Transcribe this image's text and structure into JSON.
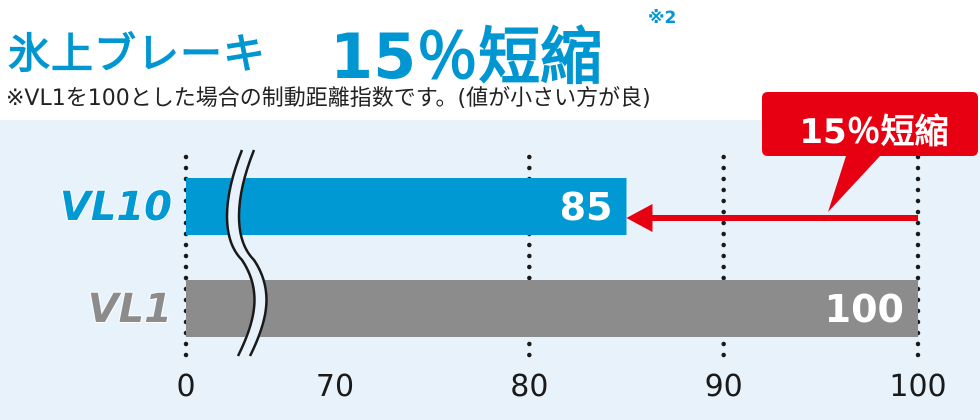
{
  "header": {
    "title": "氷上ブレーキ",
    "highlight": "15％短縮",
    "footnote_mark": "※2",
    "note": "※VL1を100とした場合の制動距離指数です。(値が小さい方が良)"
  },
  "callout": {
    "text": "15％短縮"
  },
  "colors": {
    "accent": "#0096d2",
    "bar_vl10": "#0099d4",
    "bar_vl1": "#8c8c8c",
    "arrow": "#e60012",
    "background": "#e7f2fa"
  },
  "chart_data": {
    "type": "bar",
    "orientation": "horizontal",
    "categories": [
      "VL10",
      "VL1"
    ],
    "values": [
      85,
      100
    ],
    "xlim": [
      0,
      100
    ],
    "x_ticks": [
      "0",
      "70",
      "80",
      "90",
      "100"
    ],
    "axis_break": "between 0 and 70",
    "value_labels": [
      "85",
      "100"
    ],
    "annotation": "15％短縮"
  }
}
